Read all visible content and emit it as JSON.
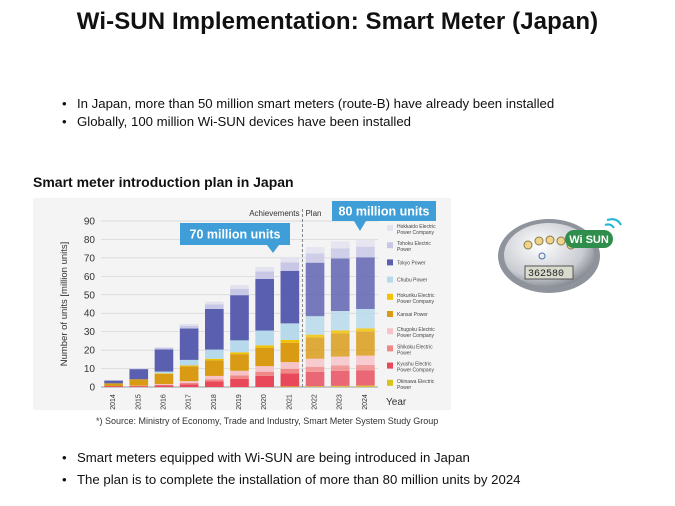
{
  "slide": {
    "title": "Wi-SUN Implementation: Smart Meter (Japan)",
    "bullets_top": [
      "In Japan, more than 50 million smart meters (route-B) have already been installed",
      "Globally, 100 million Wi-SUN devices have been installed"
    ],
    "chart_heading": "Smart meter introduction plan in Japan",
    "source": "*) Source: Ministry of Economy, Trade and Industry, Smart Meter System Study Group",
    "bullets_bottom": [
      "Smart meters equipped with Wi-SUN are being introduced in Japan",
      "The plan is to complete the installation of more than 80 million units by 2024"
    ],
    "meter_badge": "Wi SUN",
    "meter_display": "362580"
  },
  "chart_data": {
    "type": "bar",
    "stacked": true,
    "categories": [
      "2014",
      "2015",
      "2016",
      "2017",
      "2018",
      "2019",
      "2020",
      "2021",
      "2022",
      "2023",
      "2024"
    ],
    "ylabel": "Number of units [million units]",
    "xlabel": "Year",
    "ylim": [
      0,
      90
    ],
    "yticks": [
      0,
      10,
      20,
      30,
      40,
      50,
      60,
      70,
      80,
      90
    ],
    "grid": true,
    "legend": "right",
    "period_labels": [
      "Achievements",
      "Plan"
    ],
    "callouts": [
      "70 million units",
      "80 million units"
    ],
    "series": [
      {
        "name": "Okinawa Electric Power",
        "color": "#d9c21f",
        "values": [
          0,
          0,
          0,
          0,
          0,
          0,
          0,
          0.3,
          0.4,
          0.6,
          0.8
        ]
      },
      {
        "name": "Kyushu Electric Power Company",
        "color": "#e8485a",
        "values": [
          0.5,
          0.5,
          0.8,
          1.5,
          3,
          4.5,
          6,
          7,
          7.8,
          8.2,
          8.3
        ]
      },
      {
        "name": "Shikoku Electric Power",
        "color": "#f08888",
        "values": [
          0,
          0,
          0.3,
          0.7,
          1.2,
          1.8,
          2.3,
          2.6,
          2.8,
          2.9,
          2.9
        ]
      },
      {
        "name": "Chugoku Electric Power Company",
        "color": "#f6c3c8",
        "values": [
          0,
          0.2,
          0.5,
          1,
          1.8,
          2.5,
          3,
          3.6,
          4.3,
          4.8,
          5
        ]
      },
      {
        "name": "Kansai Power",
        "color": "#d99a14",
        "values": [
          1.5,
          3.5,
          5.5,
          8,
          8.5,
          9,
          10,
          10.5,
          11.5,
          12.5,
          13
        ]
      },
      {
        "name": "Hokuriku Electric Power Company",
        "color": "#f2c100",
        "values": [
          0,
          0,
          0.3,
          0.5,
          0.8,
          1,
          1.3,
          1.5,
          1.6,
          1.7,
          1.8
        ]
      },
      {
        "name": "Chubu Power",
        "color": "#b6d9ec",
        "values": [
          0,
          0,
          1,
          3,
          5,
          6.5,
          8,
          9,
          10,
          10.5,
          10.5
        ]
      },
      {
        "name": "Tokyo Power",
        "color": "#5a5fb0",
        "values": [
          1.5,
          5.5,
          12,
          17,
          22,
          24.5,
          28,
          28.5,
          29,
          28.5,
          28
        ]
      },
      {
        "name": "Tohoku Electric Power",
        "color": "#c8c7e6",
        "values": [
          0,
          0.3,
          0.8,
          1.5,
          2.5,
          3.5,
          4,
          4.5,
          5,
          5.5,
          5.8
        ]
      },
      {
        "name": "Hokkaido Electric Power Company",
        "color": "#e3e2ef",
        "values": [
          0,
          0.2,
          0.5,
          1,
          1.5,
          2,
          2.5,
          3,
          3.5,
          3.8,
          3.8
        ]
      }
    ]
  }
}
